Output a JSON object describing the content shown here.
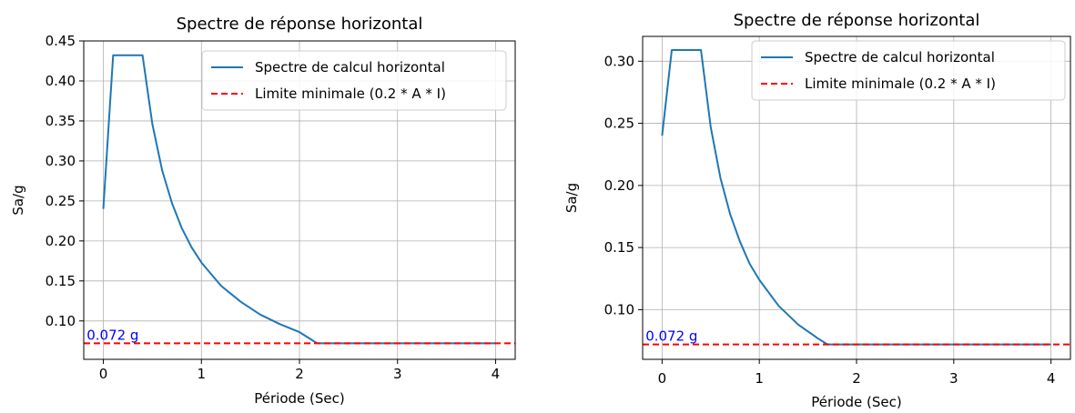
{
  "chart_data": [
    {
      "type": "line",
      "title": "Spectre de réponse horizontal",
      "xlabel": "Période (Sec)",
      "ylabel": "Sa/g",
      "xlim": [
        -0.2,
        4.2
      ],
      "ylim": [
        0.052,
        0.45
      ],
      "xticks": [
        0,
        1,
        2,
        3,
        4
      ],
      "yticks": [
        0.1,
        0.15,
        0.2,
        0.25,
        0.3,
        0.35,
        0.4,
        0.45
      ],
      "ytick_labels": [
        "0.10",
        "0.15",
        "0.20",
        "0.25",
        "0.30",
        "0.35",
        "0.40",
        "0.45"
      ],
      "grid": true,
      "legend_position": "top-right",
      "series": [
        {
          "name": "Spectre de calcul horizontal",
          "style": "solid",
          "color": "#1f77b4",
          "x": [
            0,
            0.1,
            0.4,
            0.5,
            0.6,
            0.7,
            0.8,
            0.9,
            1.0,
            1.2,
            1.4,
            1.6,
            1.8,
            2.0,
            2.18,
            4.0
          ],
          "y": [
            0.24,
            0.432,
            0.432,
            0.346,
            0.288,
            0.247,
            0.216,
            0.192,
            0.173,
            0.144,
            0.124,
            0.108,
            0.096,
            0.086,
            0.072,
            0.072
          ]
        },
        {
          "name": "Limite minimale (0.2 * A * I)",
          "style": "dashed",
          "color": "#ff0000",
          "x": [
            -0.2,
            4.2
          ],
          "y": [
            0.072,
            0.072
          ]
        }
      ],
      "annotation": {
        "text": "0.072 g",
        "x": -0.17,
        "y": 0.072,
        "color": "#0000ff"
      }
    },
    {
      "type": "line",
      "title": "Spectre de réponse horizontal",
      "xlabel": "Période (Sec)",
      "ylabel": "Sa/g",
      "xlim": [
        -0.2,
        4.2
      ],
      "ylim": [
        0.06,
        0.32
      ],
      "xticks": [
        0,
        1,
        2,
        3,
        4
      ],
      "yticks": [
        0.1,
        0.15,
        0.2,
        0.25,
        0.3
      ],
      "ytick_labels": [
        "0.10",
        "0.15",
        "0.20",
        "0.25",
        "0.30"
      ],
      "grid": true,
      "legend_position": "top-right",
      "series": [
        {
          "name": "Spectre de calcul horizontal",
          "style": "solid",
          "color": "#1f77b4",
          "x": [
            0,
            0.1,
            0.4,
            0.5,
            0.6,
            0.7,
            0.8,
            0.9,
            1.0,
            1.2,
            1.4,
            1.6,
            1.7,
            4.0
          ],
          "y": [
            0.24,
            0.309,
            0.309,
            0.247,
            0.206,
            0.177,
            0.155,
            0.137,
            0.124,
            0.103,
            0.088,
            0.077,
            0.072,
            0.072
          ]
        },
        {
          "name": "Limite minimale (0.2 * A * I)",
          "style": "dashed",
          "color": "#ff0000",
          "x": [
            -0.2,
            4.2
          ],
          "y": [
            0.072,
            0.072
          ]
        }
      ],
      "annotation": {
        "text": "0.072 g",
        "x": -0.17,
        "y": 0.072,
        "color": "#0000ff"
      }
    }
  ]
}
